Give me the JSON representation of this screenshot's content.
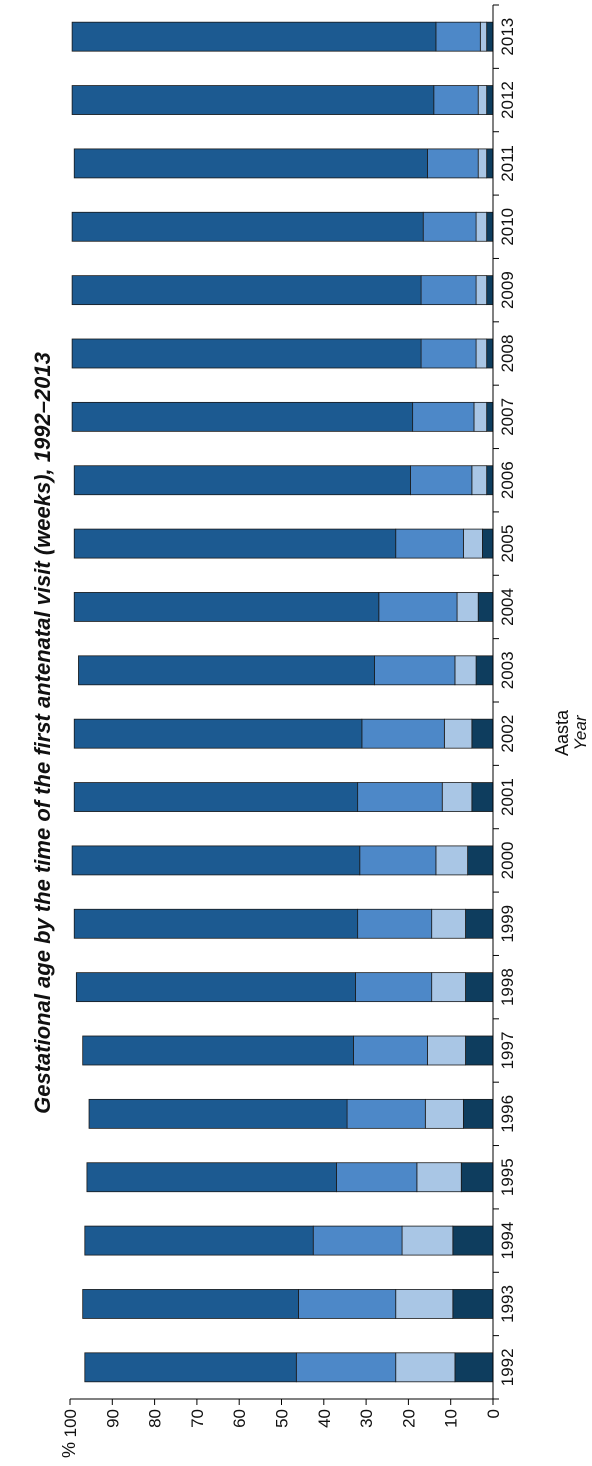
{
  "chart_data": {
    "type": "bar",
    "orientation": "stacked, rotated",
    "title": "Gestational age by the time of the first antenatal visit (weeks), 1992–2013",
    "xlabel": "Aasta",
    "xlabel_en": "Year",
    "ylabel": "%",
    "ylim": [
      0,
      100
    ],
    "yticks": [
      0,
      10,
      20,
      30,
      40,
      50,
      60,
      70,
      80,
      90,
      100
    ],
    "grid": false,
    "categories": [
      "1992",
      "1993",
      "1994",
      "1995",
      "1996",
      "1997",
      "1998",
      "1999",
      "2000",
      "2001",
      "2002",
      "2003",
      "2004",
      "2005",
      "2006",
      "2007",
      "2008",
      "2009",
      "2010",
      "2011",
      "2012",
      "2013"
    ],
    "series": [
      {
        "color": "#0e3d5e",
        "values": [
          9,
          9.5,
          9.5,
          7.5,
          7,
          6.5,
          6.5,
          6.5,
          6,
          5,
          5,
          4,
          3.5,
          2.5,
          1.5,
          1.5,
          1.5,
          1.5,
          1.5,
          1.5,
          1.5,
          1.5
        ]
      },
      {
        "color": "#a9c6e5",
        "values": [
          14,
          13.5,
          12,
          10.5,
          9,
          9,
          8,
          8,
          7.5,
          7,
          6.5,
          5,
          5,
          4.5,
          3.5,
          3,
          2.5,
          2.5,
          2.5,
          2,
          2,
          1.5
        ]
      },
      {
        "color": "#4d88c8",
        "values": [
          23.5,
          23,
          21,
          19,
          18.5,
          17.5,
          18,
          17.5,
          18,
          20,
          19.5,
          19,
          18.5,
          16,
          14.5,
          14.5,
          13,
          13,
          12.5,
          12,
          10.5,
          10.5
        ]
      },
      {
        "color": "#1c5a91",
        "values": [
          50,
          51,
          54,
          59,
          61,
          64,
          66,
          67,
          68,
          67,
          68,
          70,
          72,
          76,
          79.5,
          80.5,
          82.5,
          82.5,
          83,
          83.5,
          85.5,
          86
        ]
      }
    ]
  }
}
